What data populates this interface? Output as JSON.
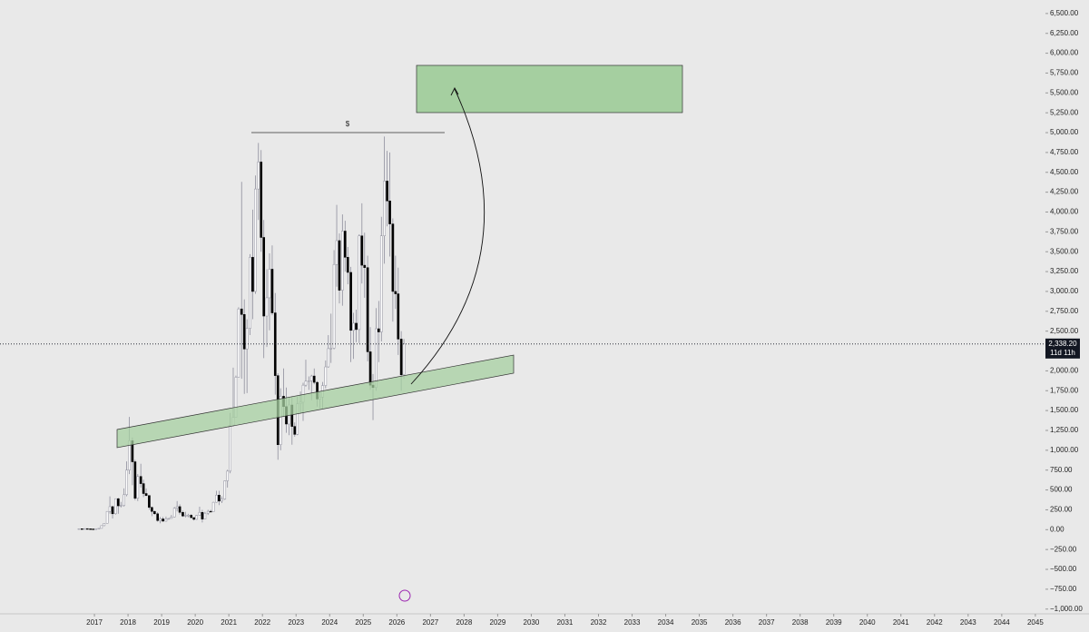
{
  "chart_data": {
    "type": "candlestick",
    "annotation_label": "$",
    "last_price_label": "2,338.20",
    "countdown_label": "11d 11h",
    "up_color": "#ffffff",
    "down_color": "#000000",
    "wick_color": "#8e8e9c",
    "xlim": [
      2014.19,
      2045.3
    ],
    "xticks": [
      2017,
      2018,
      2019,
      2020,
      2021,
      2022,
      2023,
      2024,
      2025,
      2026,
      2027,
      2028,
      2029,
      2030,
      2031,
      2032,
      2033,
      2034,
      2035,
      2036,
      2037,
      2038,
      2039,
      2040,
      2041,
      2042,
      2043,
      2044,
      2045
    ],
    "ylim": [
      -1060,
      6670
    ],
    "yticks": [
      {
        "value": 6500,
        "label": "6,500.00"
      },
      {
        "value": 6250,
        "label": "6,250.00"
      },
      {
        "value": 6000,
        "label": "6,000.00"
      },
      {
        "value": 5750,
        "label": "5,750.00"
      },
      {
        "value": 5500,
        "label": "5,500.00"
      },
      {
        "value": 5250,
        "label": "5,250.00"
      },
      {
        "value": 5000,
        "label": "5,000.00"
      },
      {
        "value": 4750,
        "label": "4,750.00"
      },
      {
        "value": 4500,
        "label": "4,500.00"
      },
      {
        "value": 4250,
        "label": "4,250.00"
      },
      {
        "value": 4000,
        "label": "4,000.00"
      },
      {
        "value": 3750,
        "label": "3,750.00"
      },
      {
        "value": 3500,
        "label": "3,500.00"
      },
      {
        "value": 3250,
        "label": "3,250.00"
      },
      {
        "value": 3000,
        "label": "3,000.00"
      },
      {
        "value": 2750,
        "label": "2,750.00"
      },
      {
        "value": 2500,
        "label": "2,500.00"
      },
      {
        "value": 2250,
        "label": "2,250.00"
      },
      {
        "value": 2000,
        "label": "2,000.00"
      },
      {
        "value": 1750,
        "label": "1,750.00"
      },
      {
        "value": 1500,
        "label": "1,500.00"
      },
      {
        "value": 1250,
        "label": "1,250.00"
      },
      {
        "value": 1000,
        "label": "1,000.00"
      },
      {
        "value": 750,
        "label": "750.00"
      },
      {
        "value": 500,
        "label": "500.00"
      },
      {
        "value": 250,
        "label": "250.00"
      },
      {
        "value": 0,
        "label": "0.00"
      },
      {
        "value": -250,
        "label": "−250.00"
      },
      {
        "value": -500,
        "label": "−500.00"
      },
      {
        "value": -750,
        "label": "−750.00"
      },
      {
        "value": -1000,
        "label": "−1,000.00"
      }
    ],
    "x": [
      2016.54,
      2016.63,
      2016.71,
      2016.79,
      2016.88,
      2016.96,
      2017.04,
      2017.13,
      2017.21,
      2017.29,
      2017.38,
      2017.46,
      2017.54,
      2017.63,
      2017.71,
      2017.79,
      2017.88,
      2017.96,
      2018.04,
      2018.13,
      2018.21,
      2018.29,
      2018.38,
      2018.46,
      2018.54,
      2018.63,
      2018.71,
      2018.79,
      2018.88,
      2018.96,
      2019.04,
      2019.13,
      2019.21,
      2019.29,
      2019.38,
      2019.46,
      2019.54,
      2019.63,
      2019.71,
      2019.79,
      2019.88,
      2019.96,
      2020.04,
      2020.13,
      2020.21,
      2020.29,
      2020.38,
      2020.46,
      2020.54,
      2020.63,
      2020.71,
      2020.79,
      2020.88,
      2020.96,
      2021.04,
      2021.13,
      2021.21,
      2021.29,
      2021.38,
      2021.46,
      2021.54,
      2021.63,
      2021.71,
      2021.79,
      2021.88,
      2021.96,
      2022.04,
      2022.13,
      2022.21,
      2022.29,
      2022.38,
      2022.46,
      2022.54,
      2022.63,
      2022.71,
      2022.79,
      2022.88,
      2022.96,
      2023.04,
      2023.13,
      2023.21,
      2023.29,
      2023.38,
      2023.46,
      2023.54,
      2023.63,
      2023.71,
      2023.79,
      2023.88,
      2023.96,
      2024.04,
      2024.13,
      2024.21,
      2024.29,
      2024.38,
      2024.46,
      2024.54,
      2024.63,
      2024.71,
      2024.79,
      2024.88,
      2024.96,
      2025.04,
      2025.13,
      2025.21,
      2025.29,
      2025.38,
      2025.46,
      2025.54,
      2025.63,
      2025.71,
      2025.79,
      2025.88,
      2025.96,
      2026.04,
      2026.13,
      2026.21
    ],
    "open": [
      12,
      12,
      11,
      13,
      11,
      9,
      8,
      11,
      16,
      50,
      80,
      230,
      290,
      200,
      390,
      300,
      305,
      440,
      750,
      1120,
      855,
      395,
      670,
      580,
      455,
      430,
      280,
      230,
      200,
      115,
      135,
      107,
      135,
      141,
      160,
      270,
      290,
      218,
      172,
      180,
      182,
      152,
      130,
      180,
      218,
      133,
      207,
      231,
      226,
      345,
      435,
      360,
      386,
      615,
      737,
      1315,
      1415,
      1920,
      2780,
      2710,
      2275,
      2535,
      3430,
      3000,
      4290,
      4630,
      3680,
      2690,
      2920,
      3280,
      2730,
      1940,
      1070,
      1680,
      1550,
      1330,
      1570,
      1300,
      1200,
      1585,
      1605,
      1820,
      1870,
      1875,
      1935,
      1855,
      1645,
      1670,
      1815,
      2050,
      2280,
      2285,
      3340,
      3640,
      3015,
      3760,
      3430,
      3240,
      2510,
      2600,
      2520,
      3700,
      3330,
      3300,
      2240,
      1820,
      1790,
      2530,
      2490,
      3700,
      4390,
      4140,
      3850,
      3000,
      2970,
      2400,
      1950
    ],
    "high": [
      14,
      12,
      14,
      13,
      11,
      9,
      11,
      16,
      55,
      80,
      230,
      420,
      300,
      390,
      400,
      350,
      520,
      860,
      1420,
      1160,
      880,
      700,
      830,
      630,
      520,
      430,
      290,
      240,
      220,
      160,
      160,
      165,
      145,
      185,
      285,
      360,
      320,
      240,
      225,
      200,
      195,
      155,
      185,
      290,
      250,
      225,
      250,
      250,
      350,
      490,
      490,
      420,
      620,
      755,
      1470,
      2040,
      1940,
      2800,
      4380,
      2900,
      2650,
      3470,
      4030,
      4460,
      4870,
      4780,
      3900,
      3280,
      3480,
      3580,
      2980,
      1970,
      1780,
      2030,
      1790,
      1660,
      1680,
      1350,
      1680,
      1740,
      1850,
      2140,
      1930,
      1950,
      2030,
      1870,
      1740,
      1860,
      2130,
      2450,
      2720,
      3520,
      4090,
      3730,
      3970,
      3890,
      3560,
      3310,
      2730,
      2770,
      3720,
      4110,
      3740,
      3450,
      2550,
      1960,
      2790,
      2880,
      3940,
      4950,
      4770,
      4750,
      3920,
      3450,
      3300,
      2500,
      2400
    ],
    "low": [
      10,
      10,
      11,
      10,
      8,
      7,
      8,
      10,
      16,
      45,
      80,
      200,
      140,
      190,
      200,
      280,
      290,
      420,
      700,
      560,
      370,
      360,
      530,
      410,
      420,
      250,
      170,
      190,
      100,
      80,
      100,
      100,
      125,
      140,
      155,
      230,
      190,
      160,
      155,
      155,
      140,
      115,
      125,
      175,
      90,
      130,
      185,
      220,
      225,
      340,
      310,
      335,
      375,
      530,
      710,
      1300,
      1420,
      1920,
      1900,
      1710,
      1720,
      2450,
      2650,
      2970,
      3900,
      3500,
      2160,
      2300,
      2510,
      2700,
      1700,
      880,
      1000,
      1420,
      1220,
      1190,
      1070,
      1170,
      1190,
      1460,
      1370,
      1800,
      1760,
      1630,
      1830,
      1550,
      1530,
      1520,
      1780,
      2040,
      2100,
      2270,
      3060,
      2850,
      2820,
      3250,
      3090,
      2110,
      2150,
      2360,
      2350,
      3100,
      2920,
      2120,
      1760,
      1380,
      1750,
      2110,
      2370,
      3350,
      3820,
      3440,
      2620,
      2780,
      2200,
      1750,
      1900
    ],
    "close": [
      12,
      11,
      13,
      11,
      9,
      8,
      11,
      16,
      50,
      80,
      230,
      290,
      200,
      390,
      300,
      305,
      440,
      750,
      1120,
      855,
      395,
      670,
      580,
      455,
      430,
      280,
      230,
      200,
      115,
      135,
      107,
      135,
      141,
      160,
      270,
      290,
      218,
      172,
      180,
      182,
      152,
      130,
      180,
      218,
      133,
      207,
      231,
      226,
      345,
      435,
      360,
      386,
      615,
      737,
      1315,
      1415,
      1920,
      2780,
      2710,
      2275,
      2535,
      3430,
      3000,
      4290,
      4630,
      3680,
      2690,
      2920,
      3280,
      2730,
      1940,
      1070,
      1680,
      1550,
      1330,
      1570,
      1300,
      1200,
      1585,
      1605,
      1820,
      1870,
      1875,
      1935,
      1855,
      1645,
      1670,
      1815,
      2050,
      2280,
      2285,
      3340,
      3640,
      3015,
      3760,
      3430,
      3240,
      2510,
      2600,
      2520,
      3700,
      3330,
      3300,
      2240,
      1820,
      1790,
      2530,
      2490,
      3700,
      4390,
      4140,
      3850,
      3000,
      2970,
      2400,
      1950,
      2338.2
    ]
  }
}
